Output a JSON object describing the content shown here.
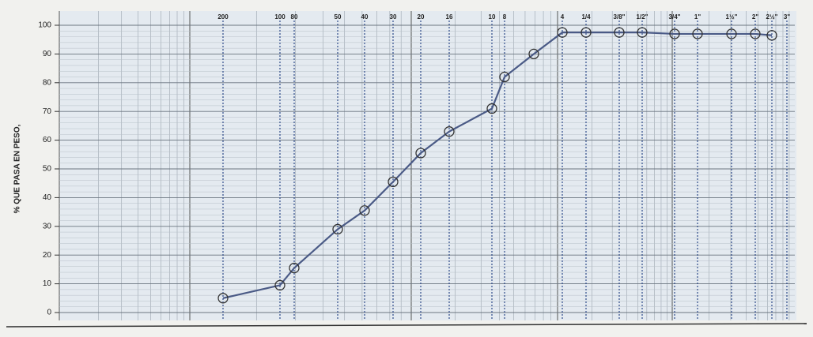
{
  "chart_data": {
    "type": "line",
    "y_label": "% QUE PASA EN PESO,",
    "categories": [
      "200",
      "100",
      "80",
      "50",
      "40",
      "30",
      "20",
      "16",
      "10",
      "8",
      null,
      "4",
      "1/4",
      "3/8\"",
      "1/2\"",
      "3/4\"",
      "1\"",
      "1½\"",
      "2\"",
      "2½\"",
      "3\""
    ],
    "values": [
      5,
      9.5,
      15.5,
      29,
      35.5,
      45.5,
      55.5,
      63,
      71,
      82,
      90,
      97.5,
      97.5,
      97.5,
      97.5,
      97,
      97,
      97,
      97,
      96.5,
      null
    ],
    "color": "#4a5a86",
    "ylim": [
      0,
      100
    ],
    "yticks": [
      0,
      10,
      20,
      30,
      40,
      50,
      60,
      70,
      80,
      90,
      100
    ],
    "grid": true
  }
}
